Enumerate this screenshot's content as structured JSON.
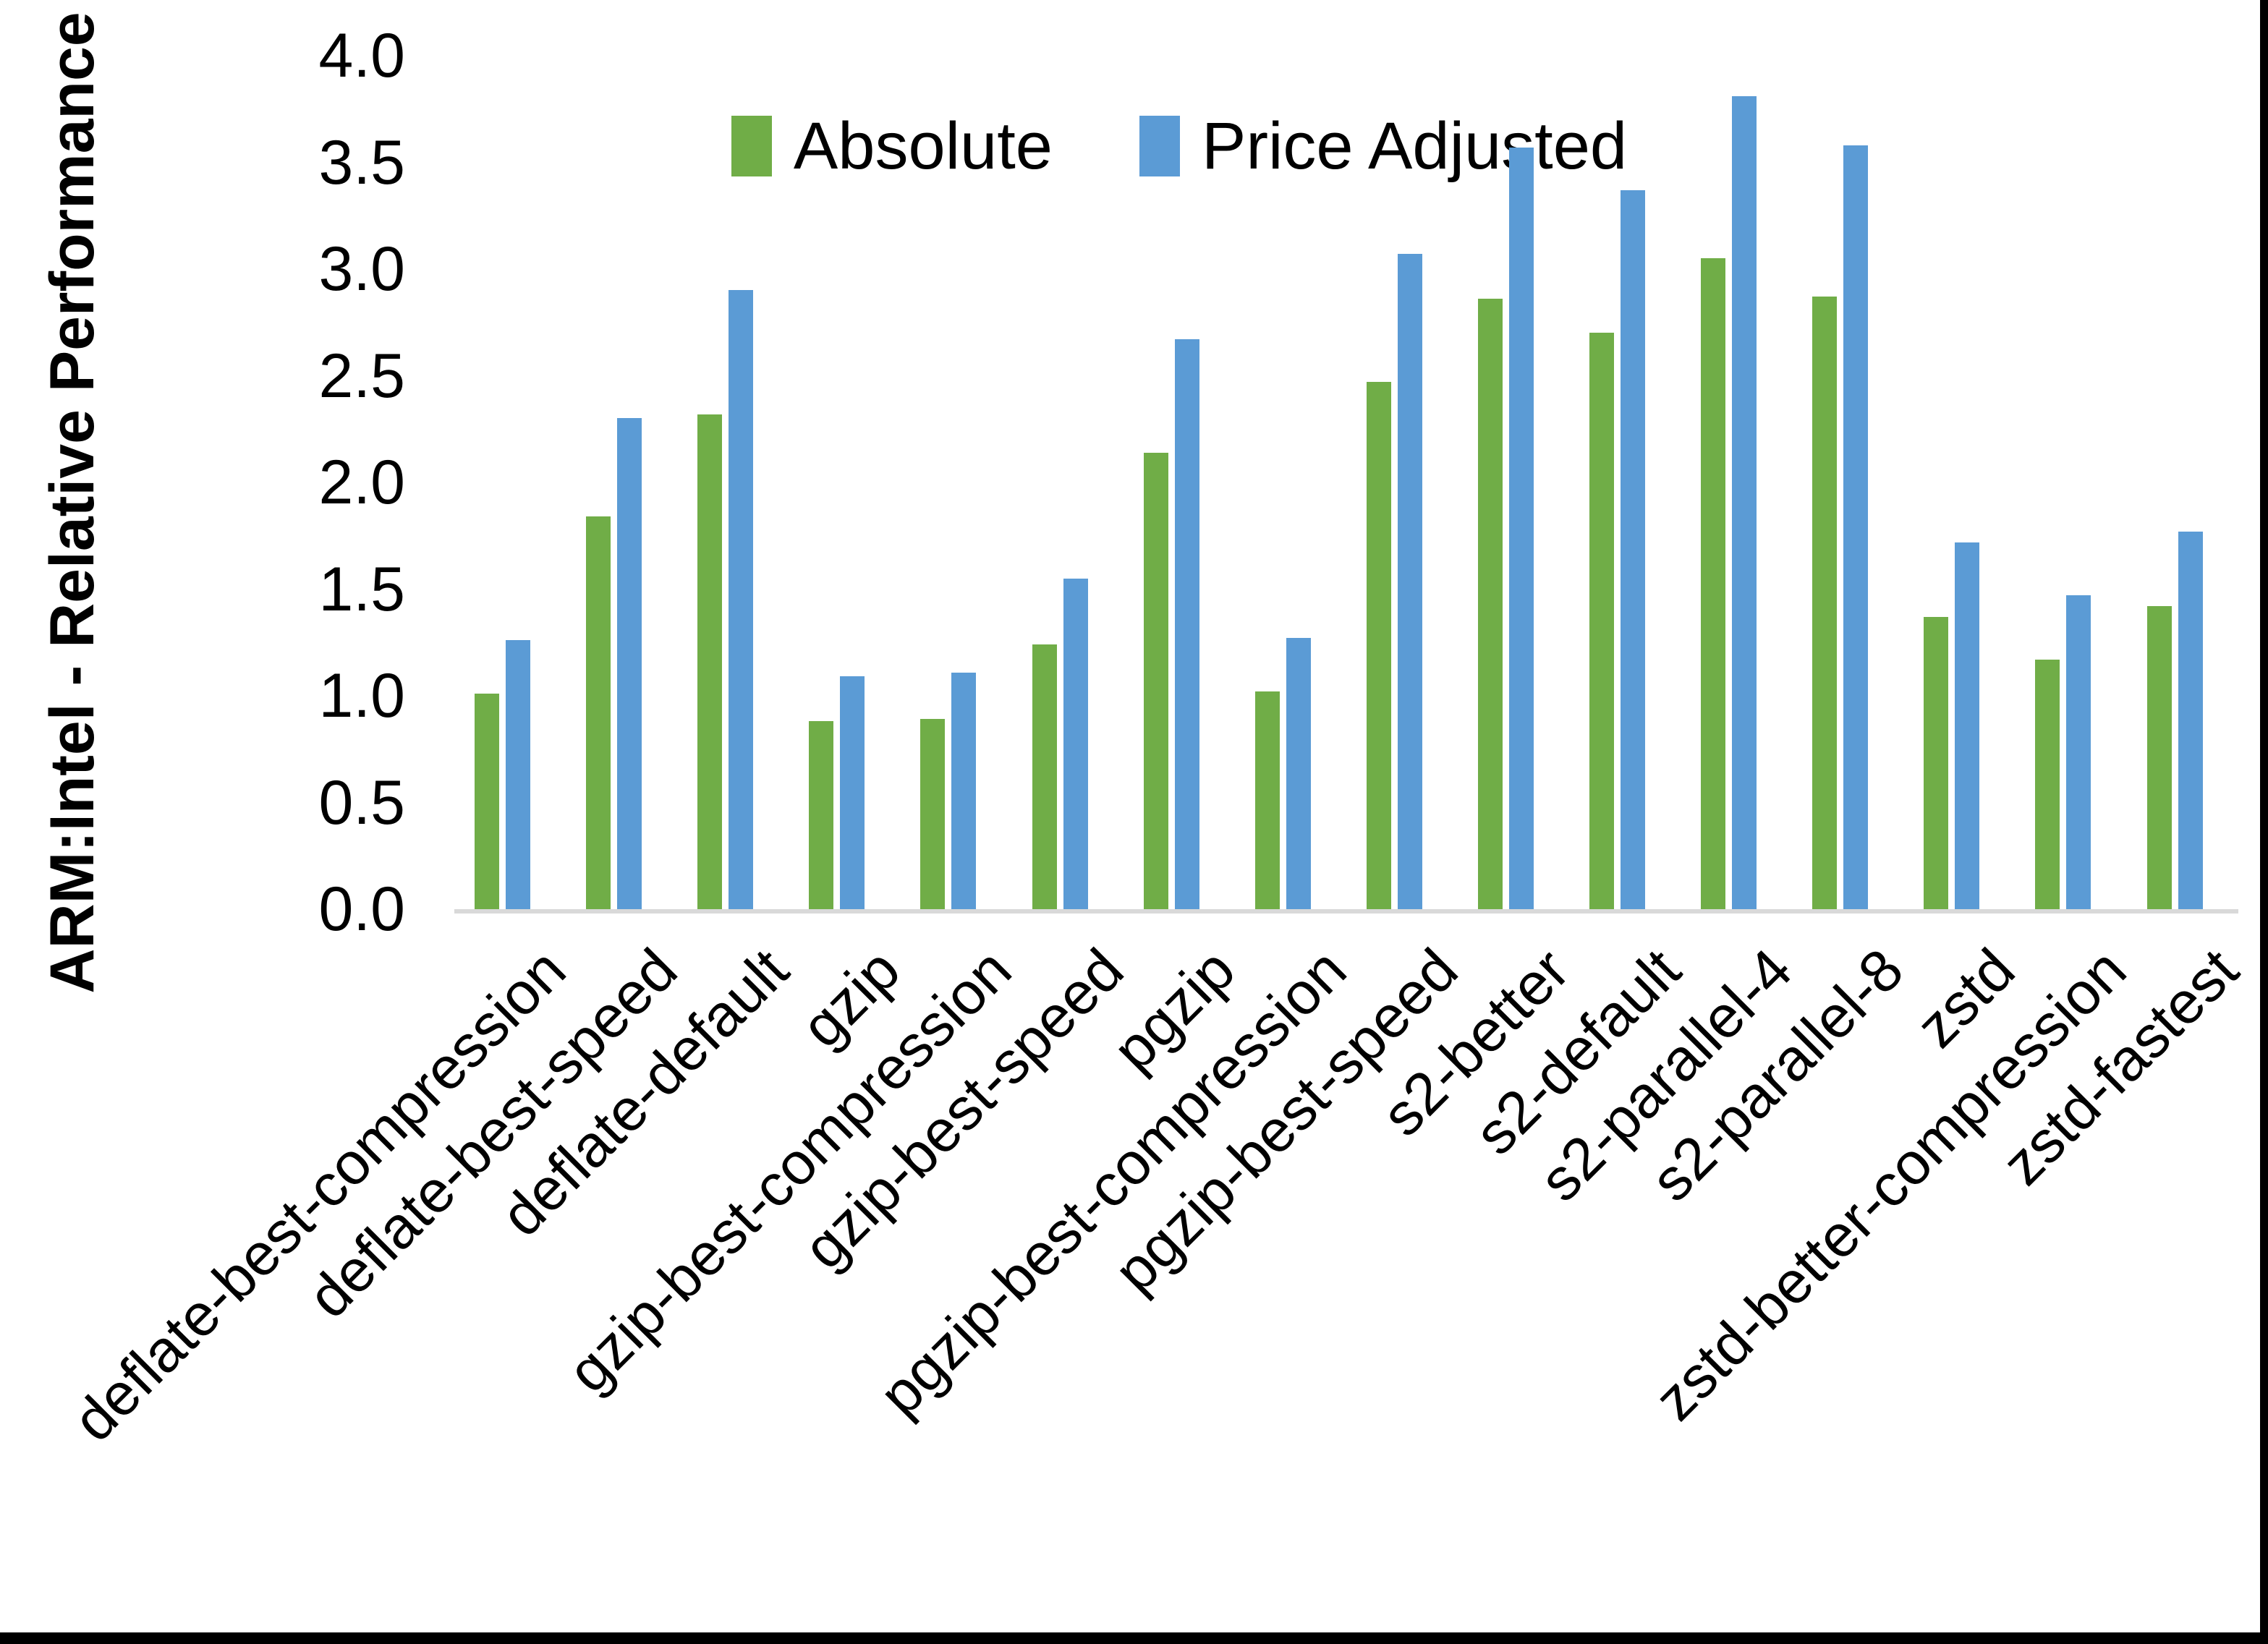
{
  "chart_data": {
    "type": "bar",
    "title": "",
    "xlabel": "",
    "ylabel": "ARM:Intel - Relative Performance",
    "ylim": [
      0.0,
      4.0
    ],
    "ytick_step": 0.5,
    "yticks": [
      "4.0",
      "3.5",
      "3.0",
      "2.5",
      "2.0",
      "1.5",
      "1.0",
      "0.5",
      "0.0"
    ],
    "grid": false,
    "legend_position": "top-center",
    "categories": [
      "deflate-best-compression",
      "deflate-best-speed",
      "deflate-default",
      "gzip",
      "gzip-best-compression",
      "gzip-best-speed",
      "pgzip",
      "pgzip-best-compression",
      "pgzip-best-speed",
      "s2-better",
      "s2-default",
      "s2-parallel-4",
      "s2-parallel-8",
      "zstd",
      "zstd-better-compression",
      "zstd-fastest"
    ],
    "series": [
      {
        "name": "Absolute",
        "color": "#70AD47",
        "values": [
          1.01,
          1.84,
          2.32,
          0.88,
          0.89,
          1.24,
          2.14,
          1.02,
          2.47,
          2.86,
          2.7,
          3.05,
          2.87,
          1.37,
          1.17,
          1.42
        ]
      },
      {
        "name": "Price Adjusted",
        "color": "#5B9BD5",
        "values": [
          1.26,
          2.3,
          2.9,
          1.09,
          1.11,
          1.55,
          2.67,
          1.27,
          3.07,
          3.57,
          3.37,
          3.81,
          3.58,
          1.72,
          1.47,
          1.77
        ]
      }
    ]
  },
  "colors": {
    "axis_line": "#D9D9D9",
    "text": "#000000",
    "background": "#FFFFFF",
    "border": "#000000"
  }
}
